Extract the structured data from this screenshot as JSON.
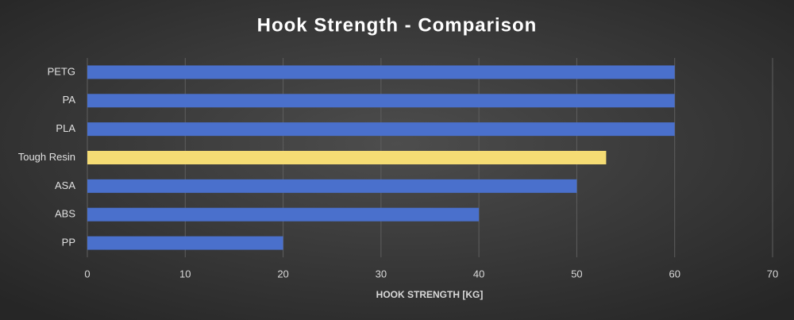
{
  "chart_data": {
    "type": "bar",
    "orientation": "horizontal",
    "title": "Hook Strength - Comparison",
    "x_label": "HOOK STRENGTH [KG]",
    "categories": [
      "PETG",
      "PA",
      "PLA",
      "Tough Resin",
      "ASA",
      "ABS",
      "PP"
    ],
    "values": [
      60,
      60,
      60,
      53,
      50,
      40,
      20
    ],
    "colors": [
      "#4a70cc",
      "#4a70cc",
      "#4a70cc",
      "#f5dc74",
      "#4a70cc",
      "#4a70cc",
      "#4a70cc"
    ],
    "xlim": [
      0,
      70
    ],
    "xticks": [
      0,
      10,
      20,
      30,
      40,
      50,
      60,
      70
    ],
    "grid": true
  }
}
